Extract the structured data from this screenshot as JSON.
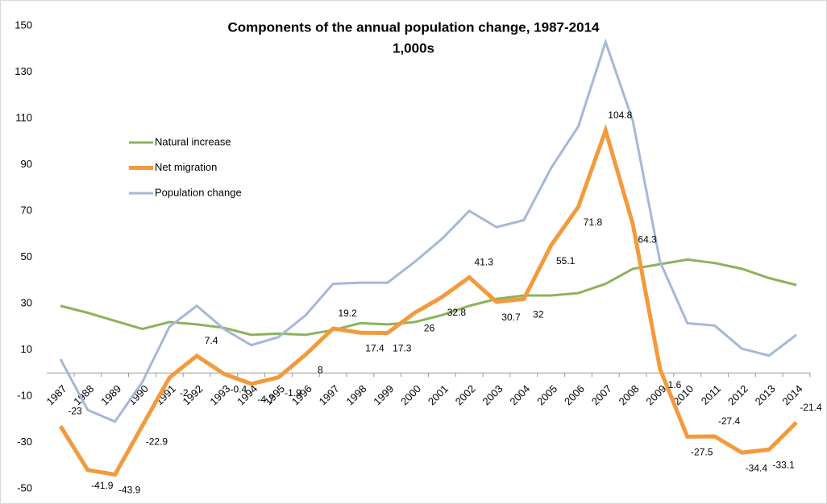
{
  "chart_data": {
    "type": "line",
    "title": "Components of the annual population change, 1987-2014",
    "subtitle": "1,000s",
    "categories": [
      "1987",
      "1988",
      "1989",
      "1990",
      "1991",
      "1992",
      "1993",
      "1994",
      "1995",
      "1996",
      "1997",
      "1998",
      "1999",
      "2000",
      "2001",
      "2002",
      "2003",
      "2004",
      "2005",
      "2006",
      "2007",
      "2008",
      "2009",
      "2010",
      "2011",
      "2012",
      "2013",
      "2014"
    ],
    "series": [
      {
        "name": "Natural increase",
        "color": "#8db35a",
        "width": 3,
        "values": [
          29,
          26,
          22.5,
          19,
          22,
          21,
          19.5,
          16.5,
          17,
          16.5,
          18.5,
          21.5,
          21,
          22,
          25,
          29,
          32,
          33.5,
          33.5,
          34.5,
          38.5,
          45,
          47,
          49,
          47.5,
          45,
          41,
          38
        ]
      },
      {
        "name": "Net migration",
        "color": "#f39a3d",
        "width": 5,
        "show_labels": true,
        "values": [
          -23,
          -41.9,
          -43.9,
          -22.9,
          -2,
          7.4,
          -0.4,
          -4.7,
          -1.9,
          8,
          19.2,
          17.4,
          17.3,
          26,
          32.8,
          41.3,
          30.7,
          32,
          55.1,
          71.8,
          104.8,
          64.3,
          1.6,
          -27.5,
          -27.4,
          -34.4,
          -33.1,
          -21.4
        ]
      },
      {
        "name": "Population change",
        "color": "#a5b8d8",
        "width": 3,
        "values": [
          6,
          -16,
          -21,
          -4,
          20,
          29,
          19,
          12,
          15.5,
          25,
          38.5,
          39,
          39,
          48,
          58,
          70,
          63,
          66,
          88.5,
          106.5,
          143,
          109,
          48,
          21.5,
          20.5,
          10.5,
          7.5,
          16.5
        ]
      }
    ],
    "ylim": [
      -50,
      150
    ],
    "yticks": [
      -50,
      -30,
      -10,
      10,
      30,
      50,
      70,
      90,
      110,
      130,
      150
    ],
    "legend": "upper left",
    "grid": false
  }
}
